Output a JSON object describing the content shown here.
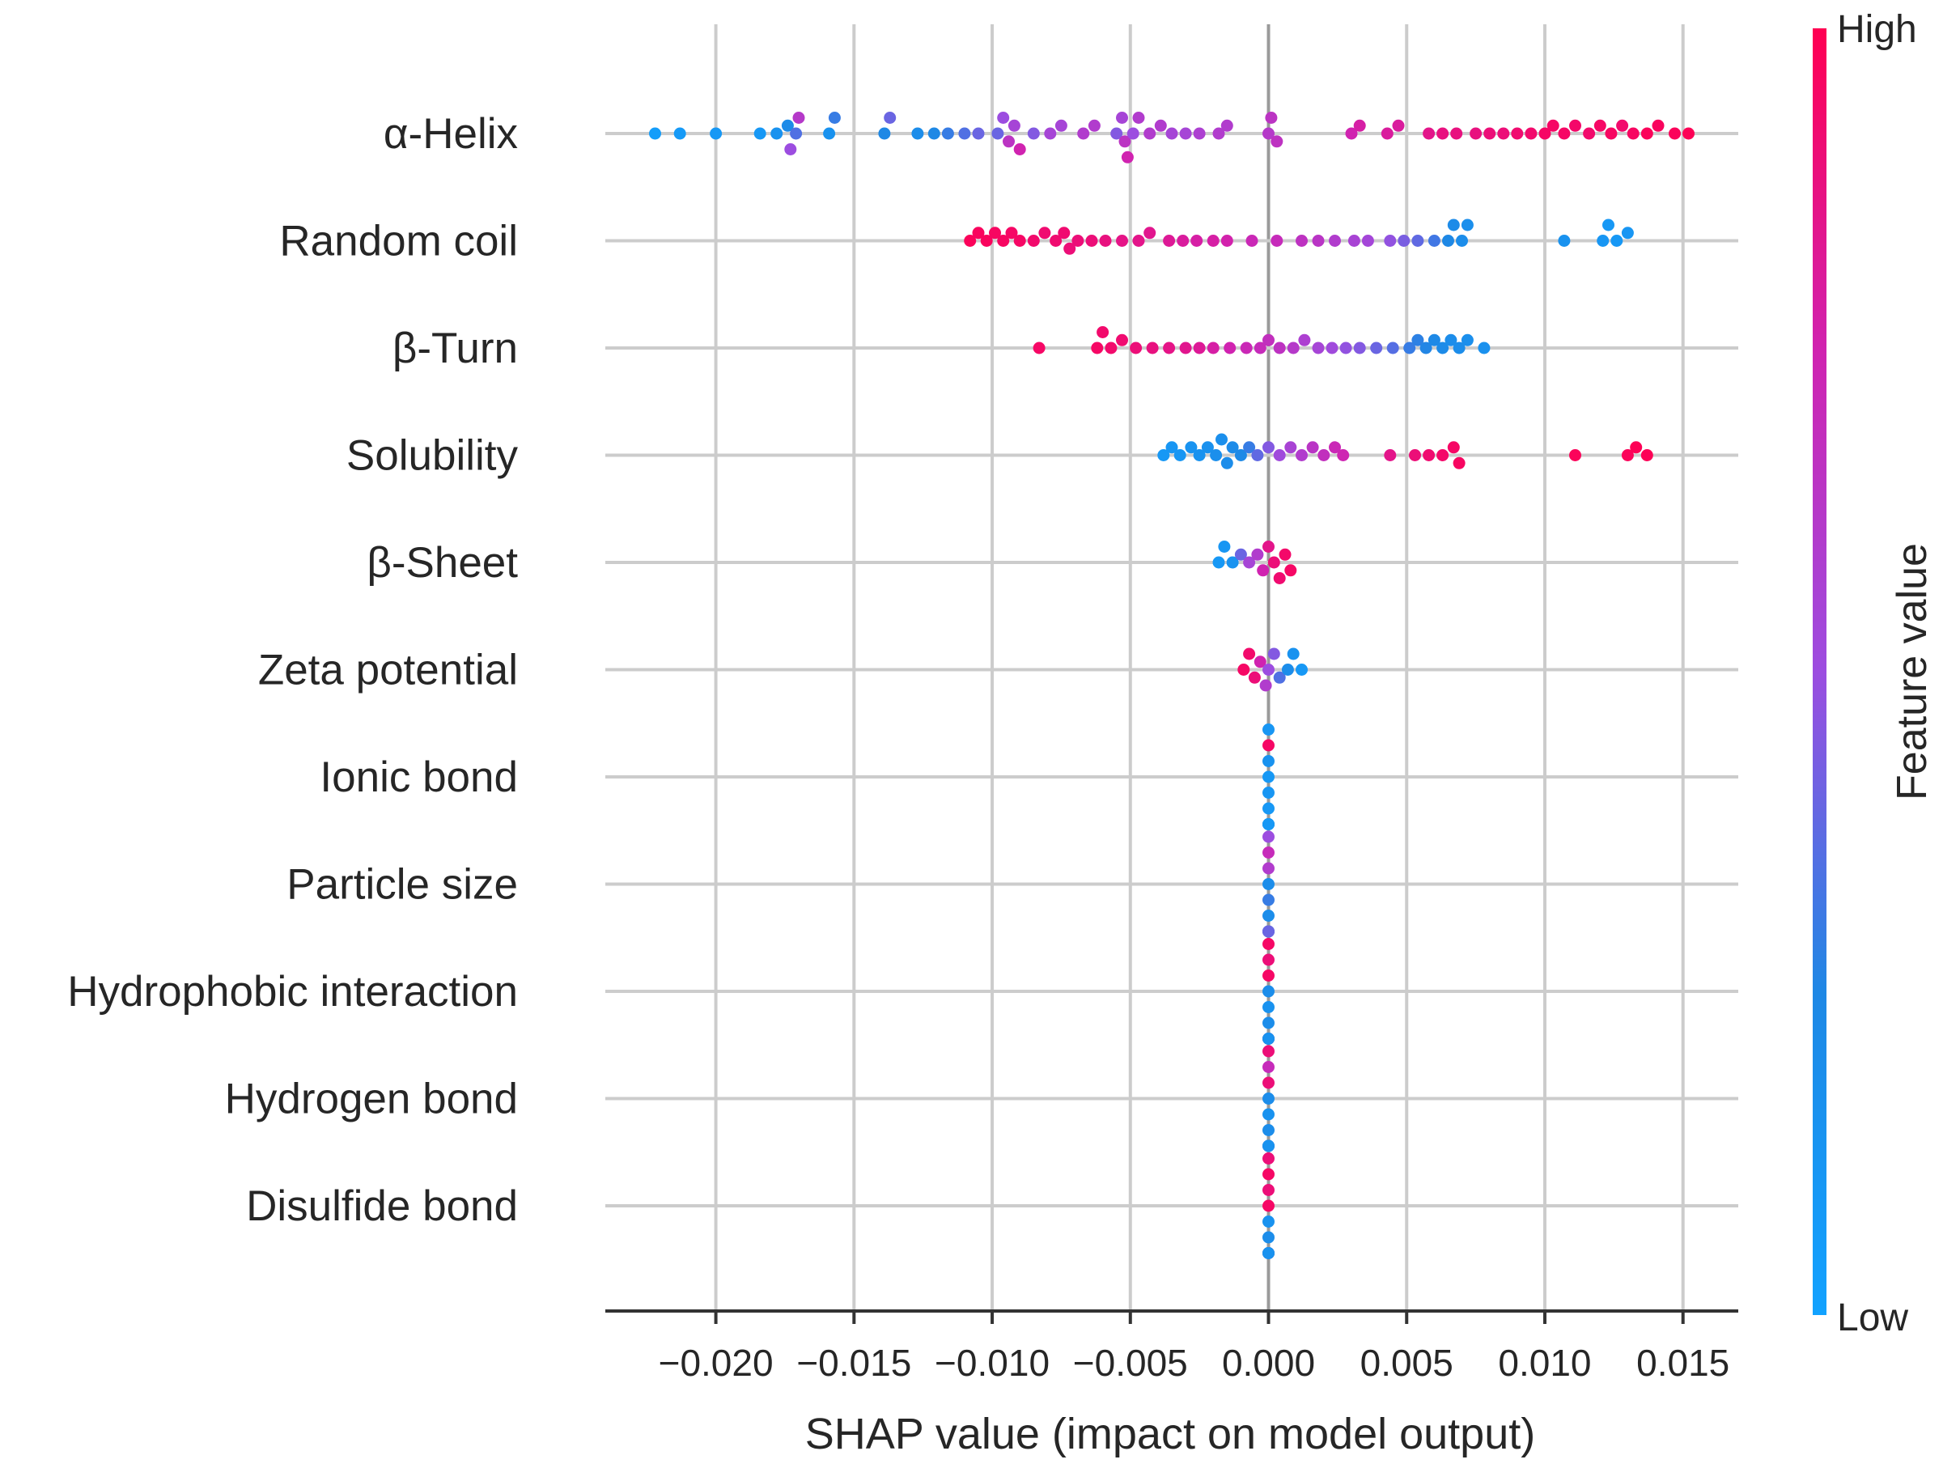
{
  "chart_data": {
    "type": "scatter",
    "subtype": "shap_beeswarm",
    "title": "",
    "xlabel": "SHAP value (impact on model output)",
    "ylabel": "",
    "xlim": [
      -0.024,
      0.017
    ],
    "x_ticks": [
      -0.02,
      -0.015,
      -0.01,
      -0.005,
      0.0,
      0.005,
      0.01,
      0.015
    ],
    "x_tick_labels": [
      "−0.020",
      "−0.015",
      "−0.010",
      "−0.005",
      "0.000",
      "0.005",
      "0.010",
      "0.015"
    ],
    "grid": true,
    "colorbar": {
      "title": "Feature value",
      "high_label": "High",
      "low_label": "Low",
      "high_color": "#ff0052",
      "mid_color": "#9c4de0",
      "low_color": "#1e88e5",
      "bottom_color": "#12a2ff"
    },
    "features": [
      {
        "name": "α-Helix",
        "points": [
          [
            -0.0222,
            0.05
          ],
          [
            -0.0213,
            0.08
          ],
          [
            -0.02,
            0.1
          ],
          [
            -0.0184,
            0.1
          ],
          [
            -0.0178,
            0.15
          ],
          [
            -0.0174,
            0.22
          ],
          [
            -0.0171,
            0.35
          ],
          [
            -0.0173,
            0.5
          ],
          [
            -0.017,
            0.62
          ],
          [
            -0.0159,
            0.15
          ],
          [
            -0.0157,
            0.3
          ],
          [
            -0.0139,
            0.25
          ],
          [
            -0.0137,
            0.4
          ],
          [
            -0.0127,
            0.2
          ],
          [
            -0.0121,
            0.25
          ],
          [
            -0.0116,
            0.3
          ],
          [
            -0.011,
            0.35
          ],
          [
            -0.0105,
            0.4
          ],
          [
            -0.0098,
            0.4
          ],
          [
            -0.0096,
            0.5
          ],
          [
            -0.0094,
            0.65
          ],
          [
            -0.0092,
            0.55
          ],
          [
            -0.009,
            0.75
          ],
          [
            -0.0085,
            0.45
          ],
          [
            -0.0079,
            0.55
          ],
          [
            -0.0075,
            0.55
          ],
          [
            -0.0067,
            0.6
          ],
          [
            -0.0063,
            0.6
          ],
          [
            -0.0055,
            0.45
          ],
          [
            -0.0053,
            0.55
          ],
          [
            -0.0052,
            0.65
          ],
          [
            -0.0051,
            0.75
          ],
          [
            -0.0049,
            0.5
          ],
          [
            -0.0047,
            0.6
          ],
          [
            -0.0043,
            0.6
          ],
          [
            -0.0039,
            0.6
          ],
          [
            -0.0035,
            0.55
          ],
          [
            -0.003,
            0.55
          ],
          [
            -0.0025,
            0.58
          ],
          [
            -0.0018,
            0.6
          ],
          [
            -0.0015,
            0.6
          ],
          [
            0.0,
            0.62
          ],
          [
            0.0001,
            0.65
          ],
          [
            0.0003,
            0.66
          ],
          [
            0.003,
            0.75
          ],
          [
            0.0033,
            0.78
          ],
          [
            0.0043,
            0.8
          ],
          [
            0.0047,
            0.8
          ],
          [
            0.0058,
            0.85
          ],
          [
            0.0063,
            0.88
          ],
          [
            0.0068,
            0.88
          ],
          [
            0.0075,
            0.88
          ],
          [
            0.008,
            0.9
          ],
          [
            0.0085,
            0.9
          ],
          [
            0.009,
            0.92
          ],
          [
            0.0095,
            0.93
          ],
          [
            0.01,
            0.95
          ],
          [
            0.0103,
            0.95
          ],
          [
            0.0107,
            0.95
          ],
          [
            0.0111,
            0.94
          ],
          [
            0.0116,
            0.93
          ],
          [
            0.012,
            0.95
          ],
          [
            0.0124,
            0.96
          ],
          [
            0.0128,
            0.93
          ],
          [
            0.0132,
            0.96
          ],
          [
            0.0137,
            0.98
          ],
          [
            0.0141,
            0.97
          ],
          [
            0.0147,
            0.98
          ],
          [
            0.0152,
            0.99
          ]
        ]
      },
      {
        "name": "Random coil",
        "points": [
          [
            -0.0108,
            0.98
          ],
          [
            -0.0105,
            0.97
          ],
          [
            -0.0102,
            0.97
          ],
          [
            -0.0099,
            0.96
          ],
          [
            -0.0096,
            0.96
          ],
          [
            -0.0093,
            0.95
          ],
          [
            -0.009,
            0.95
          ],
          [
            -0.0085,
            0.93
          ],
          [
            -0.0081,
            0.92
          ],
          [
            -0.0077,
            0.92
          ],
          [
            -0.0074,
            0.92
          ],
          [
            -0.0072,
            0.9
          ],
          [
            -0.0069,
            0.9
          ],
          [
            -0.0064,
            0.9
          ],
          [
            -0.0059,
            0.88
          ],
          [
            -0.0053,
            0.86
          ],
          [
            -0.0047,
            0.85
          ],
          [
            -0.0043,
            0.84
          ],
          [
            -0.0036,
            0.82
          ],
          [
            -0.0031,
            0.8
          ],
          [
            -0.0026,
            0.78
          ],
          [
            -0.002,
            0.78
          ],
          [
            -0.0015,
            0.76
          ],
          [
            -0.0006,
            0.72
          ],
          [
            0.0003,
            0.7
          ],
          [
            0.0012,
            0.66
          ],
          [
            0.0018,
            0.64
          ],
          [
            0.0024,
            0.6
          ],
          [
            0.0031,
            0.56
          ],
          [
            0.0036,
            0.54
          ],
          [
            0.0044,
            0.48
          ],
          [
            0.0049,
            0.43
          ],
          [
            0.0054,
            0.38
          ],
          [
            0.006,
            0.32
          ],
          [
            0.0065,
            0.25
          ],
          [
            0.0067,
            0.22
          ],
          [
            0.007,
            0.2
          ],
          [
            0.0072,
            0.18
          ],
          [
            0.0107,
            0.15
          ],
          [
            0.0121,
            0.12
          ],
          [
            0.0123,
            0.1
          ],
          [
            0.0126,
            0.1
          ],
          [
            0.013,
            0.12
          ]
        ]
      },
      {
        "name": "β-Turn",
        "points": [
          [
            -0.0083,
            0.95
          ],
          [
            -0.0062,
            0.95
          ],
          [
            -0.006,
            0.93
          ],
          [
            -0.0057,
            0.93
          ],
          [
            -0.0053,
            0.92
          ],
          [
            -0.0048,
            0.9
          ],
          [
            -0.0042,
            0.88
          ],
          [
            -0.0036,
            0.86
          ],
          [
            -0.003,
            0.84
          ],
          [
            -0.0025,
            0.82
          ],
          [
            -0.002,
            0.78
          ],
          [
            -0.0014,
            0.75
          ],
          [
            -0.0008,
            0.72
          ],
          [
            -0.0003,
            0.7
          ],
          [
            0.0,
            0.68
          ],
          [
            0.0004,
            0.66
          ],
          [
            0.0009,
            0.62
          ],
          [
            0.0013,
            0.58
          ],
          [
            0.0018,
            0.55
          ],
          [
            0.0023,
            0.52
          ],
          [
            0.0028,
            0.48
          ],
          [
            0.0033,
            0.45
          ],
          [
            0.0039,
            0.4
          ],
          [
            0.0045,
            0.36
          ],
          [
            0.0051,
            0.3
          ],
          [
            0.0054,
            0.28
          ],
          [
            0.0057,
            0.26
          ],
          [
            0.006,
            0.24
          ],
          [
            0.0063,
            0.22
          ],
          [
            0.0066,
            0.2
          ],
          [
            0.0069,
            0.2
          ],
          [
            0.0072,
            0.18
          ],
          [
            0.0078,
            0.16
          ]
        ]
      },
      {
        "name": "Solubility",
        "points": [
          [
            -0.0038,
            0.1
          ],
          [
            -0.0035,
            0.12
          ],
          [
            -0.0032,
            0.12
          ],
          [
            -0.0028,
            0.14
          ],
          [
            -0.0025,
            0.15
          ],
          [
            -0.0022,
            0.16
          ],
          [
            -0.0019,
            0.18
          ],
          [
            -0.0017,
            0.18
          ],
          [
            -0.0015,
            0.2
          ],
          [
            -0.0013,
            0.22
          ],
          [
            -0.001,
            0.24
          ],
          [
            -0.0007,
            0.3
          ],
          [
            -0.0004,
            0.38
          ],
          [
            0.0,
            0.45
          ],
          [
            0.0004,
            0.52
          ],
          [
            0.0008,
            0.56
          ],
          [
            0.0012,
            0.6
          ],
          [
            0.0016,
            0.64
          ],
          [
            0.002,
            0.68
          ],
          [
            0.0024,
            0.72
          ],
          [
            0.0027,
            0.74
          ],
          [
            0.0044,
            0.85
          ],
          [
            0.0053,
            0.9
          ],
          [
            0.0058,
            0.92
          ],
          [
            0.0063,
            0.94
          ],
          [
            0.0067,
            0.95
          ],
          [
            0.0069,
            0.96
          ],
          [
            0.0111,
            0.98
          ],
          [
            0.013,
            0.98
          ],
          [
            0.0133,
            0.99
          ],
          [
            0.0137,
            0.99
          ]
        ]
      },
      {
        "name": "β-Sheet",
        "points": [
          [
            -0.0018,
            0.1
          ],
          [
            -0.0016,
            0.12
          ],
          [
            -0.0013,
            0.14
          ],
          [
            -0.001,
            0.4
          ],
          [
            -0.0007,
            0.55
          ],
          [
            -0.0004,
            0.6
          ],
          [
            -0.0002,
            0.75
          ],
          [
            0.0,
            0.85
          ],
          [
            0.0002,
            0.9
          ],
          [
            0.0004,
            0.92
          ],
          [
            0.0006,
            0.94
          ],
          [
            0.0008,
            0.95
          ]
        ]
      },
      {
        "name": "Zeta potential",
        "points": [
          [
            -0.0009,
            0.95
          ],
          [
            -0.0007,
            0.93
          ],
          [
            -0.0005,
            0.9
          ],
          [
            -0.0003,
            0.75
          ],
          [
            -0.0001,
            0.6
          ],
          [
            0.0,
            0.5
          ],
          [
            0.0002,
            0.45
          ],
          [
            0.0004,
            0.35
          ],
          [
            0.0007,
            0.2
          ],
          [
            0.0009,
            0.15
          ],
          [
            0.0012,
            0.1
          ]
        ]
      },
      {
        "name": "Ionic bond",
        "points": [
          [
            0.0,
            0.1
          ],
          [
            0.0,
            0.15
          ],
          [
            0.0,
            0.12
          ],
          [
            0.0,
            0.95
          ],
          [
            0.0,
            0.1
          ],
          [
            0.0,
            0.12
          ],
          [
            0.0,
            0.15
          ],
          [
            0.0,
            0.1
          ],
          [
            0.0,
            0.12
          ],
          [
            0.0,
            0.1
          ]
        ]
      },
      {
        "name": "Particle size",
        "points": [
          [
            0.0,
            0.2
          ],
          [
            0.0,
            0.6
          ],
          [
            0.0,
            0.3
          ],
          [
            0.0,
            0.7
          ],
          [
            0.0,
            0.2
          ],
          [
            0.0,
            0.5
          ],
          [
            0.0,
            0.25
          ],
          [
            0.0,
            0.8
          ],
          [
            0.0,
            0.15
          ],
          [
            0.0,
            0.4
          ]
        ]
      },
      {
        "name": "Hydrophobic interaction",
        "points": [
          [
            0.0,
            0.2
          ],
          [
            0.0,
            0.95
          ],
          [
            0.0,
            0.15
          ],
          [
            0.0,
            0.9
          ],
          [
            0.0,
            0.2
          ],
          [
            0.0,
            0.95
          ],
          [
            0.0,
            0.1
          ],
          [
            0.0,
            0.85
          ],
          [
            0.0,
            0.2
          ],
          [
            0.0,
            0.15
          ]
        ]
      },
      {
        "name": "Hydrogen bond",
        "points": [
          [
            0.0,
            0.2
          ],
          [
            0.0,
            0.9
          ],
          [
            0.0,
            0.15
          ],
          [
            0.0,
            0.7
          ],
          [
            0.0,
            0.2
          ],
          [
            0.0,
            0.9
          ],
          [
            0.0,
            0.1
          ],
          [
            0.0,
            0.6
          ],
          [
            0.0,
            0.2
          ],
          [
            0.0,
            0.15
          ]
        ]
      },
      {
        "name": "Disulfide bond",
        "points": [
          [
            0.0,
            0.95
          ],
          [
            0.0,
            0.9
          ],
          [
            0.0,
            0.15
          ],
          [
            0.0,
            0.95
          ],
          [
            0.0,
            0.2
          ],
          [
            0.0,
            0.9
          ],
          [
            0.0,
            0.1
          ],
          [
            0.0,
            0.95
          ],
          [
            0.0,
            0.2
          ],
          [
            0.0,
            0.15
          ]
        ]
      }
    ]
  }
}
